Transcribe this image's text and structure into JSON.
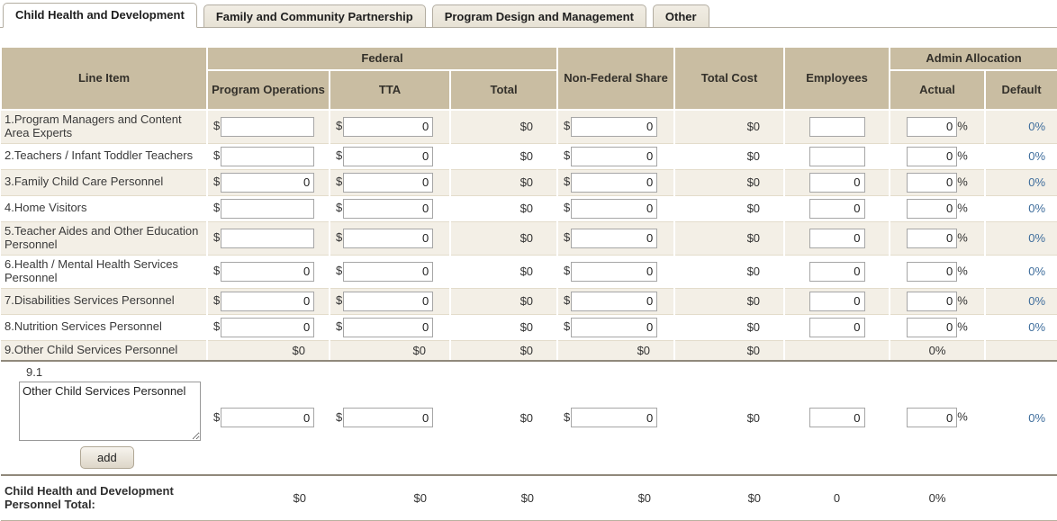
{
  "tabs": [
    {
      "label": "Child Health and Development",
      "active": true
    },
    {
      "label": "Family and Community Partnership",
      "active": false
    },
    {
      "label": "Program Design and Management",
      "active": false
    },
    {
      "label": "Other",
      "active": false
    }
  ],
  "symbols": {
    "dollar": "$",
    "percent": "%"
  },
  "colors": {
    "header_bg": "#c9bda2",
    "stripe_bg": "#f3efe6",
    "link_blue": "#3e6d9c",
    "strong_divider": "#90897b"
  },
  "table": {
    "headers": {
      "line_item": "Line Item",
      "federal": "Federal",
      "program_operations": "Program Operations",
      "tta": "TTA",
      "total": "Total",
      "non_federal_share": "Non-Federal Share",
      "total_cost": "Total Cost",
      "employees": "Employees",
      "admin_allocation": "Admin Allocation",
      "actual": "Actual",
      "default": "Default"
    },
    "rows": [
      {
        "label": "1.Program Managers and Content Area Experts",
        "program_operations": "",
        "tta": "0",
        "total": "$0",
        "non_federal_share": "0",
        "total_cost": "$0",
        "employees": "",
        "actual": "0",
        "default_pct": "0%"
      },
      {
        "label": "2.Teachers / Infant Toddler Teachers",
        "program_operations": "",
        "tta": "0",
        "total": "$0",
        "non_federal_share": "0",
        "total_cost": "$0",
        "employees": "",
        "actual": "0",
        "default_pct": "0%"
      },
      {
        "label": "3.Family Child Care Personnel",
        "program_operations": "0",
        "tta": "0",
        "total": "$0",
        "non_federal_share": "0",
        "total_cost": "$0",
        "employees": "0",
        "actual": "0",
        "default_pct": "0%"
      },
      {
        "label": "4.Home Visitors",
        "program_operations": "",
        "tta": "0",
        "total": "$0",
        "non_federal_share": "0",
        "total_cost": "$0",
        "employees": "0",
        "actual": "0",
        "default_pct": "0%"
      },
      {
        "label": "5.Teacher Aides and Other Education Personnel",
        "program_operations": "",
        "tta": "0",
        "total": "$0",
        "non_federal_share": "0",
        "total_cost": "$0",
        "employees": "0",
        "actual": "0",
        "default_pct": "0%"
      },
      {
        "label": "6.Health / Mental Health Services Personnel",
        "program_operations": "0",
        "tta": "0",
        "total": "$0",
        "non_federal_share": "0",
        "total_cost": "$0",
        "employees": "0",
        "actual": "0",
        "default_pct": "0%"
      },
      {
        "label": "7.Disabilities Services Personnel",
        "program_operations": "0",
        "tta": "0",
        "total": "$0",
        "non_federal_share": "0",
        "total_cost": "$0",
        "employees": "0",
        "actual": "0",
        "default_pct": "0%"
      },
      {
        "label": "8.Nutrition Services Personnel",
        "program_operations": "0",
        "tta": "0",
        "total": "$0",
        "non_federal_share": "0",
        "total_cost": "$0",
        "employees": "0",
        "actual": "0",
        "default_pct": "0%"
      }
    ],
    "summary_row": {
      "label": "9.Other Child Services Personnel",
      "program_operations": "$0",
      "tta": "$0",
      "total": "$0",
      "non_federal_share": "$0",
      "total_cost": "$0",
      "employees": "",
      "actual": "0%",
      "default_pct": ""
    },
    "sub_row": {
      "number": "9.1",
      "name_value": "Other Child Services Personnel",
      "add_label": "add",
      "program_operations": "0",
      "tta": "0",
      "total": "$0",
      "non_federal_share": "0",
      "total_cost": "$0",
      "employees": "0",
      "actual": "0",
      "default_pct": "0%"
    },
    "total_row": {
      "label": "Child Health and Development Personnel Total:",
      "program_operations": "$0",
      "tta": "$0",
      "total": "$0",
      "non_federal_share": "$0",
      "total_cost": "$0",
      "employees": "0",
      "actual": "0%",
      "default_pct": ""
    }
  }
}
